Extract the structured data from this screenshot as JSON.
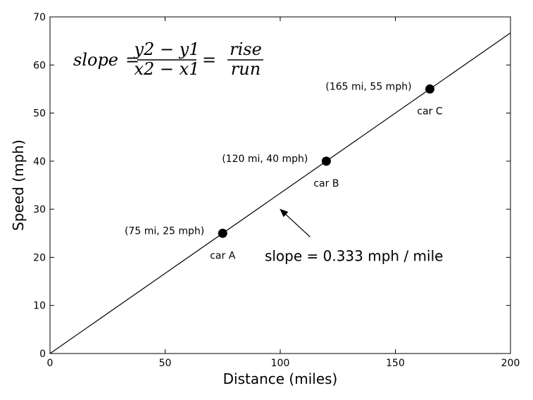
{
  "chart_data": {
    "type": "line",
    "xlabel": "Distance (miles)",
    "ylabel": "Speed (mph)",
    "xlim": [
      0,
      200
    ],
    "ylim": [
      0,
      70
    ],
    "x_ticks": [
      0,
      50,
      100,
      150,
      200
    ],
    "y_ticks": [
      0,
      10,
      20,
      30,
      40,
      50,
      60,
      70
    ],
    "grid": false,
    "series": [
      {
        "x": [
          0,
          200
        ],
        "values": [
          0,
          66.67
        ],
        "color": "#000000"
      }
    ],
    "points": [
      {
        "x": 75,
        "y": 25,
        "name": "car A",
        "coord_label": "(75 mi, 25 mph)"
      },
      {
        "x": 120,
        "y": 40,
        "name": "car B",
        "coord_label": "(120 mi, 40 mph)"
      },
      {
        "x": 165,
        "y": 55,
        "name": "car C",
        "coord_label": "(165 mi, 55 mph)"
      }
    ],
    "annotation": {
      "text": "slope = 0.333 mph / mile",
      "text_x": 110,
      "text_y": 21,
      "arrow_to_x": 100,
      "arrow_to_y": 30
    },
    "formula": {
      "lhs": "slope",
      "num1": "y2 − y1",
      "den1": "x2 − x1",
      "num2": "rise",
      "den2": "run",
      "eq": "="
    }
  }
}
